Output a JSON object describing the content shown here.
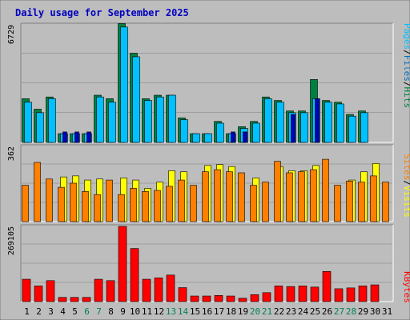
{
  "chart_data": [
    {
      "type": "bar",
      "title": "Daily usage for September 2025",
      "categories": [
        "1",
        "2",
        "3",
        "4",
        "5",
        "6",
        "7",
        "8",
        "9",
        "10",
        "11",
        "12",
        "13",
        "14",
        "15",
        "16",
        "17",
        "18",
        "19",
        "20",
        "21",
        "22",
        "23",
        "24",
        "25",
        "26",
        "27",
        "28",
        "29",
        "30",
        "31"
      ],
      "weekend_days": [
        "6",
        "7",
        "13",
        "14",
        "20",
        "21",
        "27",
        "28"
      ],
      "ylim": [
        0,
        6729
      ],
      "max_label": "6729",
      "series": [
        {
          "name": "Hits",
          "color": "#008040",
          "values": [
            2500,
            1900,
            2600,
            500,
            500,
            500,
            2700,
            2500,
            6800,
            5100,
            2500,
            2700,
            2700,
            1400,
            500,
            500,
            1200,
            500,
            900,
            1200,
            2600,
            2400,
            1800,
            1800,
            3600,
            2400,
            2300,
            1600,
            1800,
            0,
            0
          ]
        },
        {
          "name": "Files",
          "color": "#00c0ff",
          "values": [
            2300,
            1700,
            2500,
            500,
            500,
            500,
            2600,
            2300,
            6600,
            4900,
            2400,
            2600,
            2700,
            1300,
            500,
            500,
            1100,
            500,
            800,
            1100,
            2500,
            2300,
            1700,
            1700,
            2500,
            2300,
            2200,
            1500,
            1700,
            0,
            0
          ]
        },
        {
          "name": "Pages",
          "color": "#0000c0",
          "values": [
            0,
            0,
            0,
            600,
            600,
            600,
            0,
            0,
            0,
            0,
            0,
            0,
            0,
            0,
            0,
            0,
            0,
            600,
            600,
            0,
            0,
            0,
            1600,
            0,
            2500,
            0,
            0,
            0,
            0,
            0,
            0
          ]
        }
      ],
      "legend": [
        "Pages",
        "Files",
        "Hits"
      ]
    },
    {
      "type": "bar",
      "categories": [
        "1",
        "2",
        "3",
        "4",
        "5",
        "6",
        "7",
        "8",
        "9",
        "10",
        "11",
        "12",
        "13",
        "14",
        "15",
        "16",
        "17",
        "18",
        "19",
        "20",
        "21",
        "22",
        "23",
        "24",
        "25",
        "26",
        "27",
        "28",
        "29",
        "30",
        "31"
      ],
      "ylim": [
        0,
        362
      ],
      "max_label": "362",
      "series": [
        {
          "name": "Visits",
          "color": "#ffff00",
          "values": [
            0,
            0,
            0,
            215,
            220,
            200,
            205,
            0,
            210,
            200,
            160,
            190,
            245,
            240,
            0,
            270,
            275,
            265,
            0,
            210,
            0,
            265,
            245,
            245,
            270,
            0,
            0,
            200,
            240,
            280,
            0
          ]
        },
        {
          "name": "Sites",
          "color": "#ff8000",
          "values": [
            175,
            285,
            205,
            165,
            185,
            145,
            130,
            200,
            130,
            160,
            145,
            150,
            170,
            200,
            175,
            240,
            250,
            240,
            235,
            175,
            190,
            290,
            235,
            240,
            250,
            300,
            175,
            195,
            190,
            220,
            190
          ]
        }
      ],
      "legend": [
        "Sites",
        "Visits"
      ]
    },
    {
      "type": "bar",
      "categories": [
        "1",
        "2",
        "3",
        "4",
        "5",
        "6",
        "7",
        "8",
        "9",
        "10",
        "11",
        "12",
        "13",
        "14",
        "15",
        "16",
        "17",
        "18",
        "19",
        "20",
        "21",
        "22",
        "23",
        "24",
        "25",
        "26",
        "27",
        "28",
        "29",
        "30",
        "31"
      ],
      "ylim": [
        0,
        269105
      ],
      "max_label": "269105",
      "series": [
        {
          "name": "KBytes",
          "color": "#ff0000",
          "values": [
            80000,
            56000,
            75000,
            15000,
            15000,
            15000,
            80000,
            75000,
            269105,
            190000,
            80000,
            85000,
            95000,
            50000,
            20000,
            20000,
            22000,
            20000,
            12000,
            25000,
            32000,
            56000,
            54000,
            56000,
            52000,
            108000,
            46000,
            49000,
            56000,
            60000,
            0
          ]
        }
      ],
      "legend": [
        "KBytes"
      ]
    }
  ]
}
